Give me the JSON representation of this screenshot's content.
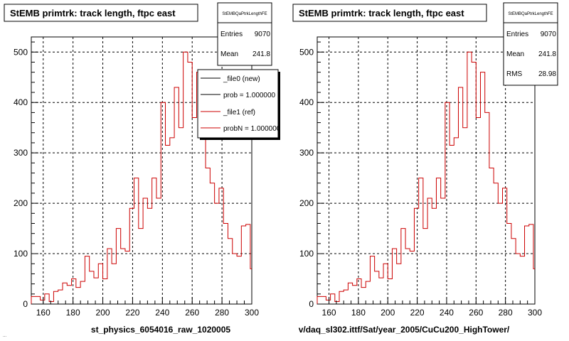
{
  "chart_data": [
    {
      "type": "histogram",
      "title": "StEMB primtrk: track length, ftpc east",
      "xlabel": "st_physics_6054016_raw_1020005",
      "xlim": [
        152,
        300
      ],
      "ylim": [
        0,
        530
      ],
      "xticks": [
        160,
        180,
        200,
        220,
        240,
        260,
        280,
        300
      ],
      "yticks": [
        0,
        100,
        200,
        300,
        400,
        500
      ],
      "grid": true,
      "stats": {
        "name": "StEMBQaPtrkLengthFE",
        "rows": [
          {
            "label": "Entries",
            "value": "9070"
          },
          {
            "label": "Mean",
            "value": "241.8"
          }
        ]
      },
      "legend": [
        {
          "label": "_file0 (new)",
          "color": "#000000"
        },
        {
          "label": "prob = 1.000000",
          "color": "#000000"
        },
        {
          "label": "_file1 (ref)",
          "color": "#cc0000"
        },
        {
          "label": "probN = 1.000000",
          "color": "#cc0000"
        }
      ],
      "series": [
        {
          "x_edges": [
            152,
            155,
            158,
            161,
            164,
            167,
            170,
            173,
            176,
            179,
            182,
            185,
            188,
            191,
            194,
            197,
            200,
            203,
            206,
            209,
            212,
            215,
            218,
            221,
            224,
            227,
            230,
            233,
            236,
            239,
            242,
            245,
            248,
            251,
            254,
            257,
            260,
            263,
            266,
            269,
            272,
            275,
            278,
            281,
            284,
            287,
            290,
            293,
            296,
            299,
            300
          ],
          "values": [
            15,
            15,
            8,
            20,
            5,
            25,
            28,
            42,
            37,
            50,
            33,
            45,
            95,
            65,
            52,
            80,
            50,
            110,
            80,
            150,
            110,
            105,
            190,
            250,
            150,
            210,
            190,
            250,
            210,
            400,
            315,
            330,
            430,
            350,
            500,
            480,
            370,
            460,
            380,
            270,
            240,
            200,
            230,
            160,
            130,
            100,
            95,
            155,
            158,
            70
          ],
          "color": "#cc0000"
        }
      ]
    },
    {
      "type": "histogram",
      "title": "StEMB primtrk: track length, ftpc east",
      "xlabel": "v/daq_sl302.ittf/Sat/year_2005/CuCu200_HighTower/",
      "xlim": [
        152,
        300
      ],
      "ylim": [
        0,
        530
      ],
      "xticks": [
        160,
        180,
        200,
        220,
        240,
        260,
        280,
        300
      ],
      "yticks": [
        0,
        100,
        200,
        300,
        400,
        500
      ],
      "grid": true,
      "stats": {
        "name": "StEMBQaPtrkLengthFE",
        "rows": [
          {
            "label": "Entries",
            "value": "9070"
          },
          {
            "label": "Mean",
            "value": "241.8"
          },
          {
            "label": "RMS",
            "value": "28.98"
          }
        ]
      },
      "series": [
        {
          "x_edges": [
            152,
            155,
            158,
            161,
            164,
            167,
            170,
            173,
            176,
            179,
            182,
            185,
            188,
            191,
            194,
            197,
            200,
            203,
            206,
            209,
            212,
            215,
            218,
            221,
            224,
            227,
            230,
            233,
            236,
            239,
            242,
            245,
            248,
            251,
            254,
            257,
            260,
            263,
            266,
            269,
            272,
            275,
            278,
            281,
            284,
            287,
            290,
            293,
            296,
            299,
            300
          ],
          "values": [
            15,
            15,
            8,
            20,
            5,
            25,
            28,
            42,
            37,
            50,
            33,
            45,
            95,
            65,
            52,
            80,
            50,
            110,
            80,
            150,
            110,
            105,
            190,
            250,
            150,
            210,
            190,
            250,
            210,
            400,
            315,
            330,
            430,
            350,
            500,
            480,
            370,
            460,
            380,
            270,
            240,
            200,
            230,
            160,
            130,
            100,
            95,
            155,
            158,
            70
          ],
          "color": "#cc0000"
        }
      ]
    }
  ],
  "footer": "..."
}
